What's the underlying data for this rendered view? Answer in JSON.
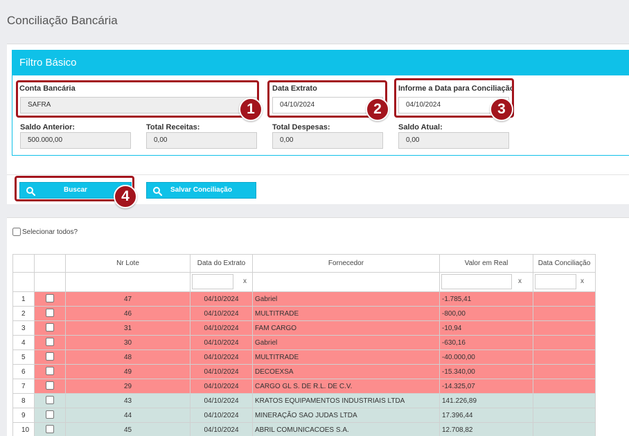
{
  "page": {
    "title": "Conciliação Bancária"
  },
  "filter": {
    "header": "Filtro Básico",
    "conta_label": "Conta Bancária",
    "conta_value": "SAFRA",
    "data_extrato_label": "Data Extrato",
    "data_extrato_value": "04/10/2024",
    "data_conciliacao_label": "Informe a Data para Conciliação",
    "data_conciliacao_value": "04/10/2024",
    "saldo_anterior_label": "Saldo Anterior:",
    "saldo_anterior_value": "500.000,00",
    "total_receitas_label": "Total Receitas:",
    "total_receitas_value": "0,00",
    "total_despesas_label": "Total Despesas:",
    "total_despesas_value": "0,00",
    "saldo_atual_label": "Saldo Atual:",
    "saldo_atual_value": "0,00"
  },
  "badges": {
    "b1": "1",
    "b2": "2",
    "b3": "3",
    "b4": "4"
  },
  "buttons": {
    "buscar": "Buscar",
    "salvar": "Salvar Conciliação"
  },
  "grid": {
    "select_all_label": "Selecionar todos?",
    "columns": [
      "Nr Lote",
      "Data do Extrato",
      "Fornecedor",
      "Valor em Real",
      "Data Conciliação"
    ],
    "filter_clear": "x",
    "rows": [
      {
        "n": "1",
        "lote": "47",
        "data": "04/10/2024",
        "fornecedor": "Gabriel",
        "valor": "-1.785,41",
        "conc": "",
        "type": "neg"
      },
      {
        "n": "2",
        "lote": "46",
        "data": "04/10/2024",
        "fornecedor": "MULTITRADE",
        "valor": "-800,00",
        "conc": "",
        "type": "neg"
      },
      {
        "n": "3",
        "lote": "31",
        "data": "04/10/2024",
        "fornecedor": "FAM CARGO",
        "valor": "-10,94",
        "conc": "",
        "type": "neg"
      },
      {
        "n": "4",
        "lote": "30",
        "data": "04/10/2024",
        "fornecedor": "Gabriel",
        "valor": "-630,16",
        "conc": "",
        "type": "neg"
      },
      {
        "n": "5",
        "lote": "48",
        "data": "04/10/2024",
        "fornecedor": "MULTITRADE",
        "valor": "-40.000,00",
        "conc": "",
        "type": "neg"
      },
      {
        "n": "6",
        "lote": "49",
        "data": "04/10/2024",
        "fornecedor": "DECOEXSA",
        "valor": "-15.340,00",
        "conc": "",
        "type": "neg"
      },
      {
        "n": "7",
        "lote": "29",
        "data": "04/10/2024",
        "fornecedor": "CARGO GL S. DE R.L. DE C.V.",
        "valor": "-14.325,07",
        "conc": "",
        "type": "neg"
      },
      {
        "n": "8",
        "lote": "43",
        "data": "04/10/2024",
        "fornecedor": "KRATOS EQUIPAMENTOS INDUSTRIAIS LTDA",
        "valor": "141.226,89",
        "conc": "",
        "type": "pos"
      },
      {
        "n": "9",
        "lote": "44",
        "data": "04/10/2024",
        "fornecedor": "MINERAÇÃO SAO JUDAS LTDA",
        "valor": "17.396,44",
        "conc": "",
        "type": "pos"
      },
      {
        "n": "10",
        "lote": "45",
        "data": "04/10/2024",
        "fornecedor": "ABRIL COMUNICACOES S.A.",
        "valor": "12.708,82",
        "conc": "",
        "type": "pos"
      }
    ]
  },
  "colors": {
    "accent": "#0fc1e8",
    "highlight": "#a3141d",
    "negative_row": "#fc8d8d",
    "positive_row": "#cfe2df"
  }
}
